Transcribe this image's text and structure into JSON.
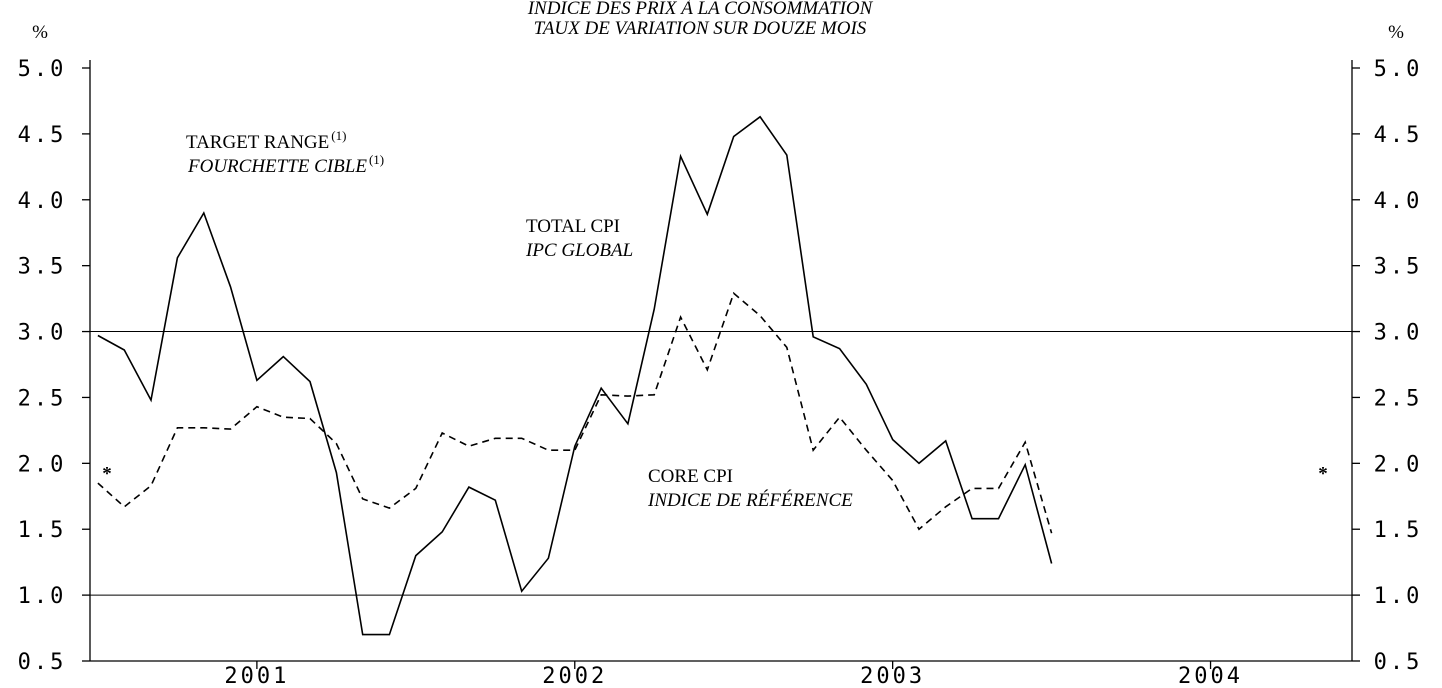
{
  "chart_data": {
    "type": "line",
    "title": "INDICE DES PRIX À LA CONSOMMATION",
    "subtitle": "TAUX DE VARIATION SUR DOUZE MOIS",
    "y_unit": "%",
    "y2_unit": "%",
    "x": [
      2001,
      2001.083,
      2001.167,
      2001.25,
      2001.333,
      2001.417,
      2001.5,
      2001.583,
      2001.667,
      2001.75,
      2001.833,
      2001.917,
      2002,
      2002.083,
      2002.167,
      2002.25,
      2002.333,
      2002.417,
      2002.5,
      2002.583,
      2002.667,
      2002.75,
      2002.833,
      2002.917,
      2003,
      2003.083,
      2003.167,
      2003.25,
      2003.333,
      2003.417,
      2003.5,
      2003.583,
      2003.667,
      2003.75,
      2003.833,
      2003.917,
      2004
    ],
    "series": [
      {
        "name": "TOTAL CPI",
        "color": "#000000",
        "dash": false,
        "values": [
          2.97,
          2.86,
          2.48,
          3.56,
          3.9,
          3.34,
          2.63,
          2.81,
          2.62,
          1.93,
          0.7,
          0.7,
          1.3,
          1.48,
          1.82,
          1.72,
          1.03,
          1.28,
          2.13,
          2.57,
          2.3,
          3.17,
          4.33,
          3.89,
          4.48,
          4.63,
          4.34,
          2.96,
          2.87,
          2.6,
          2.18,
          2.0,
          2.17,
          1.58,
          1.58,
          1.99,
          1.24
        ]
      },
      {
        "name": "CORE CPI",
        "color": "#000000",
        "dash": true,
        "values": [
          1.85,
          1.67,
          1.83,
          2.27,
          2.27,
          2.26,
          2.43,
          2.35,
          2.34,
          2.15,
          1.73,
          1.66,
          1.81,
          2.23,
          2.13,
          2.19,
          2.19,
          2.1,
          2.1,
          2.52,
          2.51,
          2.52,
          3.11,
          2.71,
          3.29,
          3.12,
          2.88,
          2.1,
          2.35,
          2.1,
          1.87,
          1.5,
          1.67,
          1.81,
          1.81,
          2.16,
          1.47
        ]
      }
    ],
    "target_range": [
      1,
      3
    ],
    "xlim": [
      2000.975,
      2004.945
    ],
    "xticks": [
      {
        "value": 2001.5,
        "label": "2001"
      },
      {
        "value": 2002.5,
        "label": "2002"
      },
      {
        "value": 2003.5,
        "label": "2003"
      },
      {
        "value": 2004.5,
        "label": "2004"
      }
    ],
    "ylim": [
      0.5,
      5.0
    ],
    "yticks": [
      {
        "value": 0.5,
        "label": "0.5"
      },
      {
        "value": 1,
        "label": "1.0"
      },
      {
        "value": 1.5,
        "label": "1.5"
      },
      {
        "value": 2,
        "label": "2.0"
      },
      {
        "value": 2.5,
        "label": "2.5"
      },
      {
        "value": 3,
        "label": "3.0"
      },
      {
        "value": 3.5,
        "label": "3.5"
      },
      {
        "value": 4,
        "label": "4.0"
      },
      {
        "value": 4.5,
        "label": "4.5"
      },
      {
        "value": 5,
        "label": "5.0"
      }
    ],
    "y2lim": [
      0.5,
      5.0
    ],
    "y2ticks": [
      {
        "value": 0.5,
        "label": "0.5"
      },
      {
        "value": 1,
        "label": "1.0"
      },
      {
        "value": 1.5,
        "label": "1.5"
      },
      {
        "value": 2,
        "label": "2.0"
      },
      {
        "value": 2.5,
        "label": "2.5"
      },
      {
        "value": 3,
        "label": "3.0"
      },
      {
        "value": 3.5,
        "label": "3.5"
      },
      {
        "value": 4,
        "label": "4.0"
      },
      {
        "value": 4.5,
        "label": "4.5"
      },
      {
        "value": 5,
        "label": "5.0"
      }
    ],
    "annotations": [
      {
        "text": "TARGET RANGE",
        "note": "(1)",
        "italic": false
      },
      {
        "text": "FOURCHETTE CIBLE",
        "note": "(1)",
        "italic": true
      },
      {
        "text": "TOTAL CPI",
        "italic": false
      },
      {
        "text": "IPC GLOBAL",
        "italic": true
      },
      {
        "text": "CORE CPI",
        "italic": false
      },
      {
        "text": "INDICE DE RÉFÉRENCE",
        "italic": true
      }
    ],
    "markers": [
      {
        "text": "*",
        "y": 2
      },
      {
        "text": "*",
        "y": 2
      }
    ]
  }
}
